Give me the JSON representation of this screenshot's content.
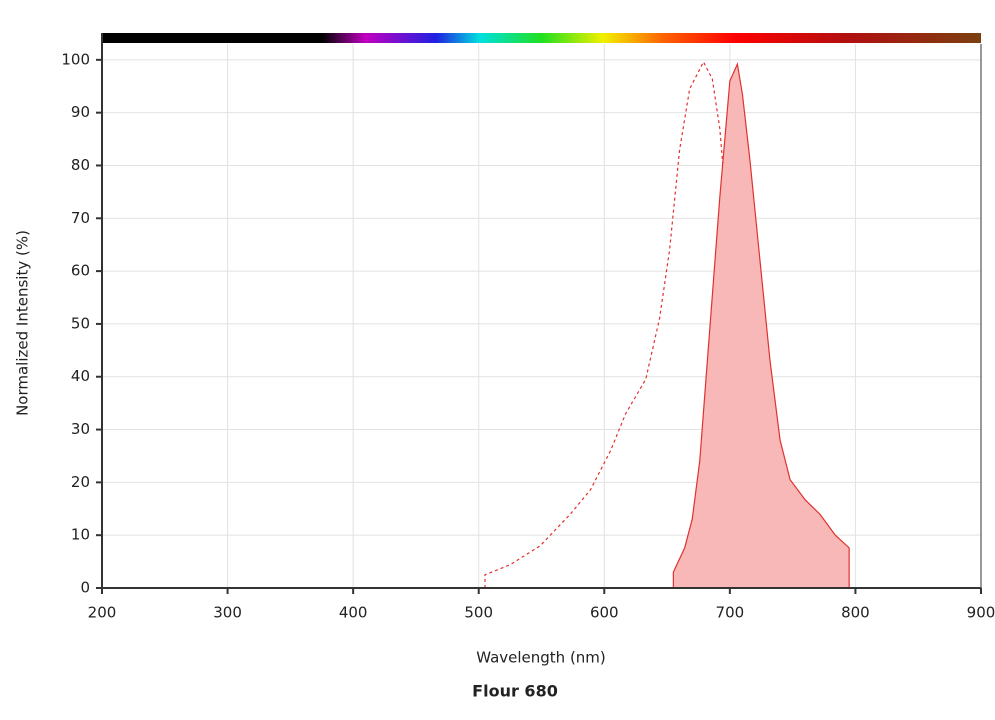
{
  "chart_data": {
    "type": "line",
    "title": "Flour 680",
    "x_label": "Wavelength (nm)",
    "y_label": "Normalized Intensity (%)",
    "xlim": [
      200,
      900
    ],
    "xticks": [
      200,
      300,
      400,
      500,
      600,
      700,
      800,
      900
    ],
    "ylim": [
      0,
      103
    ],
    "yticks": [
      0,
      10,
      20,
      30,
      40,
      50,
      60,
      70,
      80,
      90,
      100
    ],
    "grid": true,
    "series": [
      {
        "color": "#e0312f",
        "line_style": "dashed",
        "x": [
          505,
          505,
          525,
          549,
          573,
          589,
          605,
          617,
          633,
          644,
          652,
          660,
          668,
          679,
          686,
          692,
          700,
          708,
          716,
          724,
          736,
          745,
          745
        ],
        "values": [
          0,
          2.5,
          4.4,
          8,
          14,
          18.6,
          26,
          33,
          39.5,
          51,
          64,
          83,
          94.5,
          99.6,
          96.4,
          87,
          64,
          45,
          26,
          13,
          4.4,
          2.5,
          0
        ]
      },
      {
        "color": "#e0312f",
        "line_style": "solid",
        "fill": "#f8b8b8",
        "x": [
          655,
          655,
          664,
          670,
          676,
          684,
          692,
          700,
          706,
          710,
          716,
          724,
          732,
          740,
          748,
          760,
          772,
          784,
          795,
          795
        ],
        "values": [
          0,
          3,
          7.6,
          13,
          24,
          49,
          74,
          96,
          99.2,
          93.5,
          81,
          62,
          43,
          28,
          20.5,
          16.7,
          13.9,
          10,
          7.6,
          0
        ]
      }
    ]
  }
}
